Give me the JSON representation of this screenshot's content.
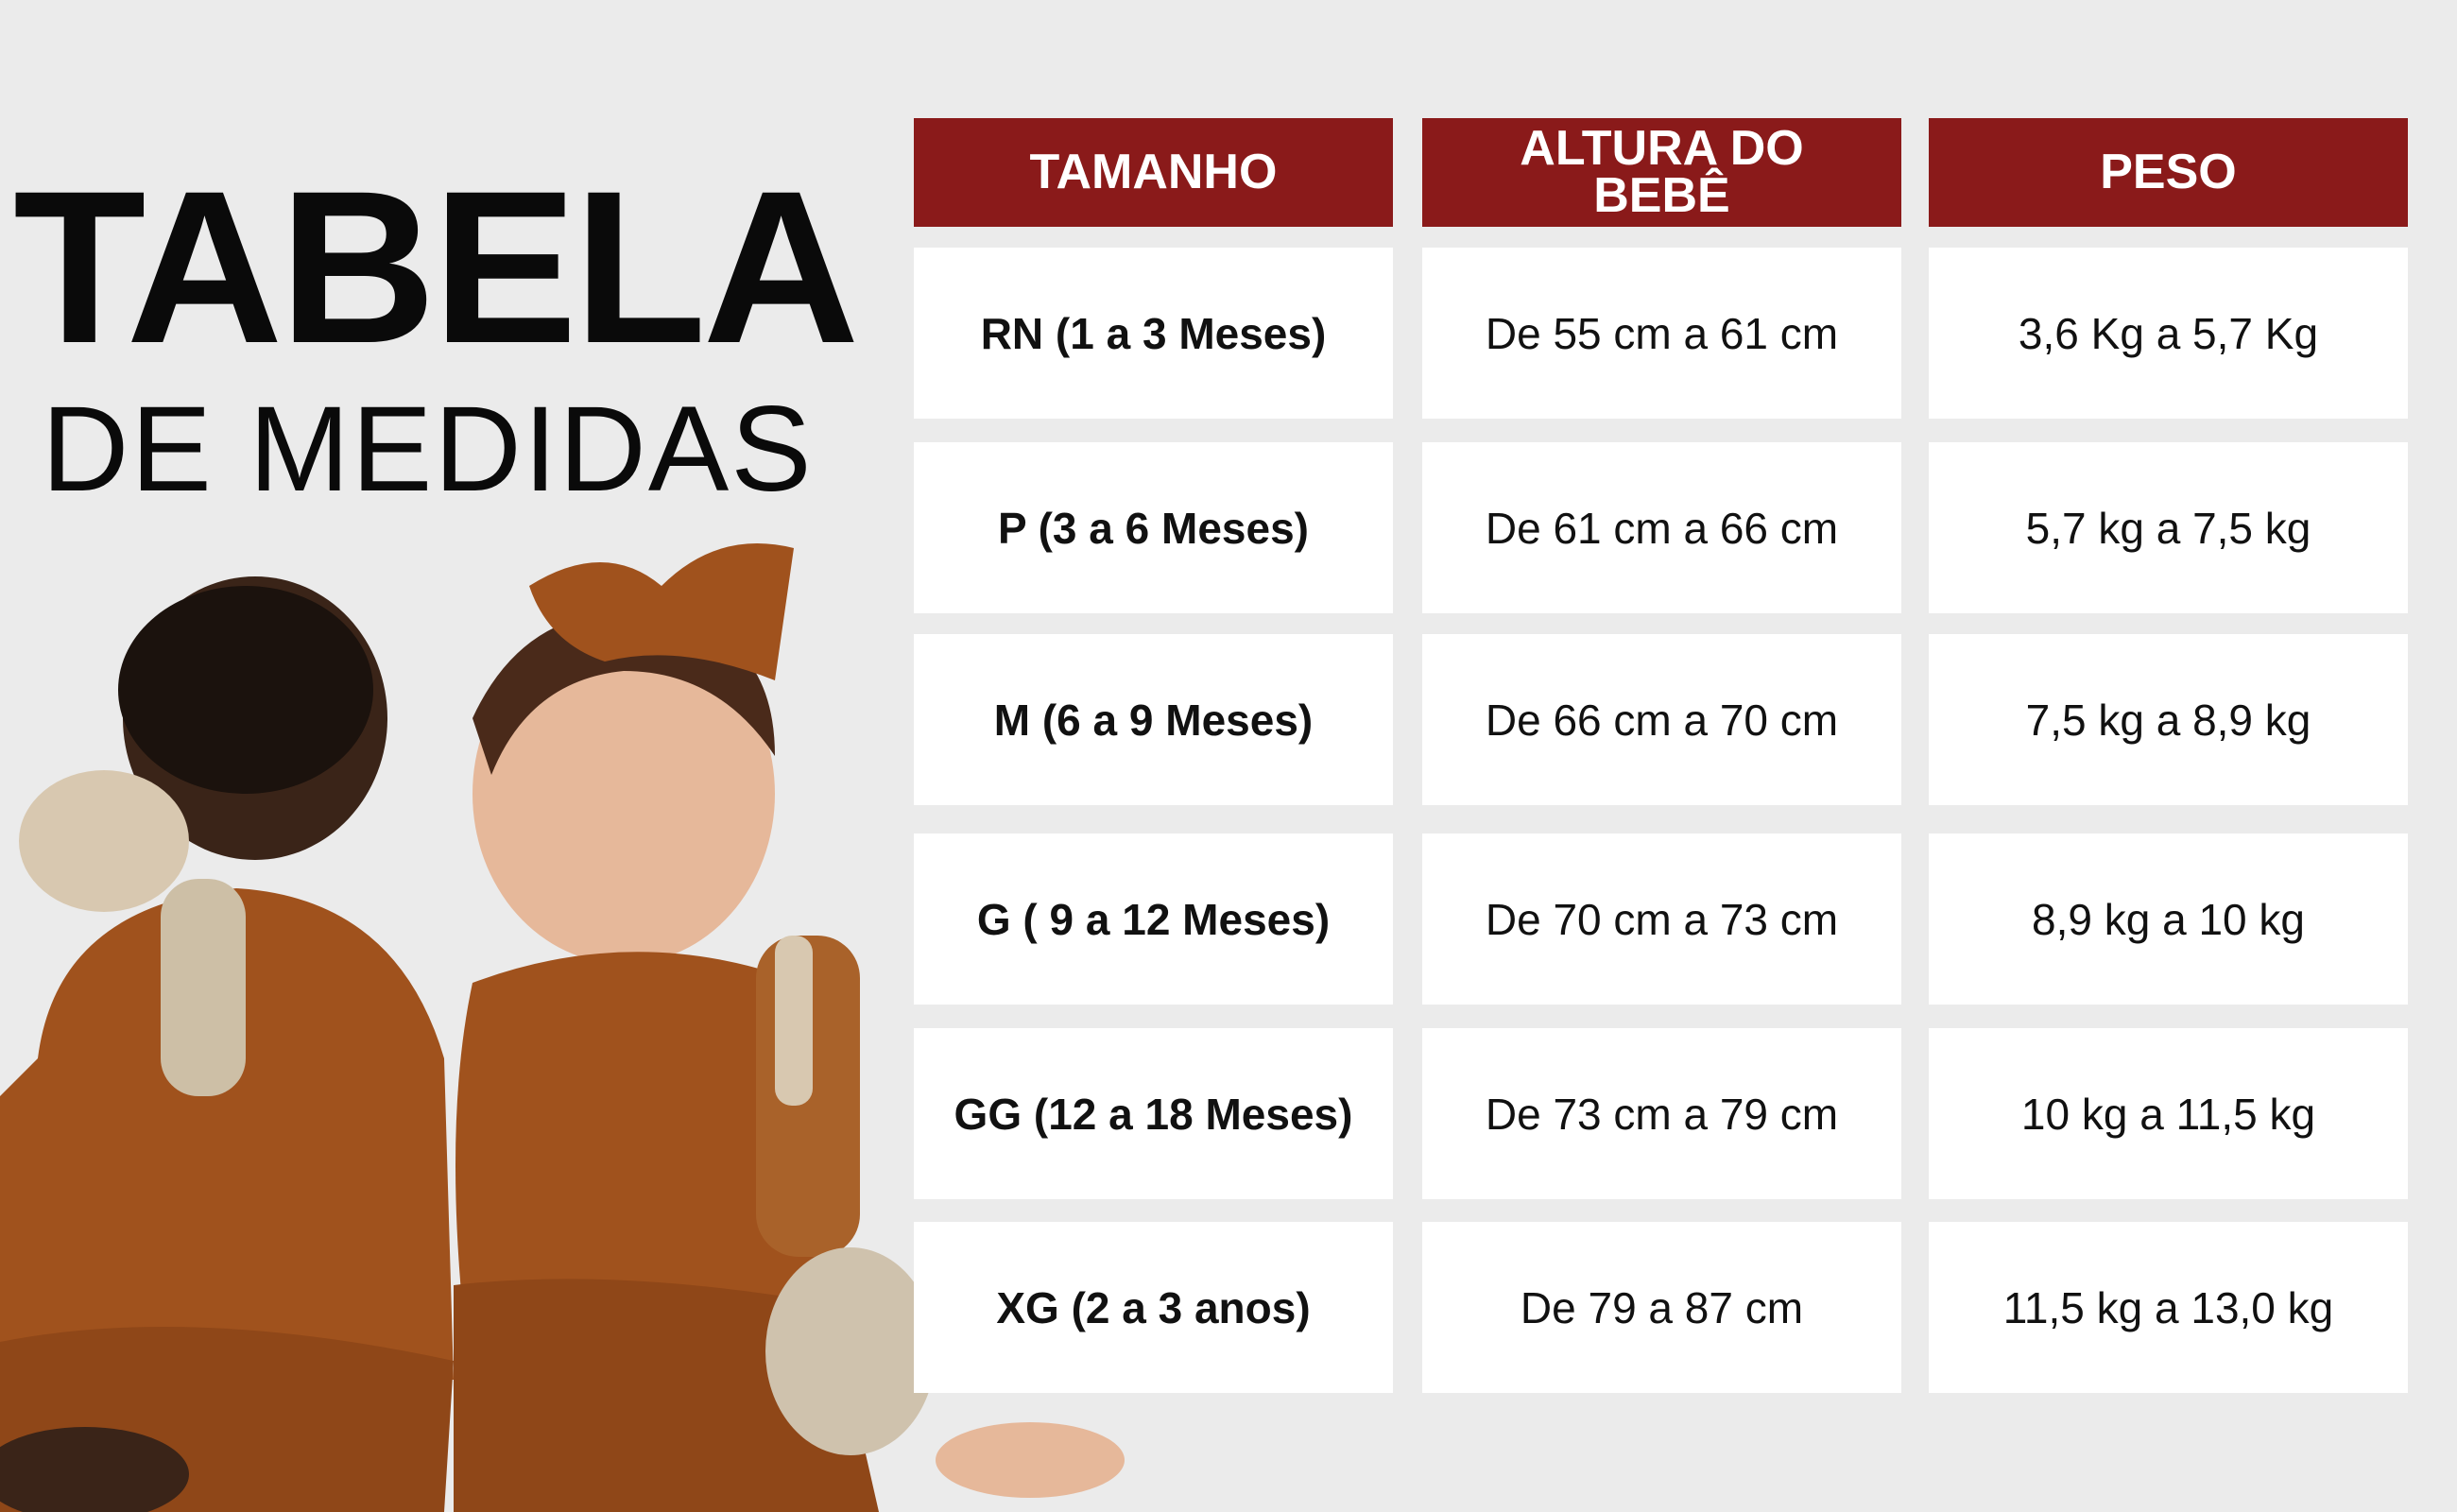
{
  "title": {
    "line1": "TABELA",
    "line2": "DE MEDIDAS"
  },
  "colors": {
    "header_bg": "#8a1a1a",
    "page_bg": "#ebebeb",
    "cell_bg": "#ffffff",
    "outfit": "#a0521d"
  },
  "table": {
    "headers": [
      "TAMANHO",
      "ALTURA DO BEBÊ",
      "PESO"
    ],
    "rows": [
      [
        "RN (1 a 3 Meses)",
        "De 55 cm a 61 cm",
        "3,6 Kg a 5,7 Kg"
      ],
      [
        "P (3 a 6 Meses)",
        "De 61 cm a 66 cm",
        "5,7 kg a 7,5 kg"
      ],
      [
        "M (6 a 9 Meses)",
        "De 66 cm a 70 cm",
        "7,5 kg a 8,9 kg"
      ],
      [
        "G ( 9 a 12 Meses)",
        "De 70 cm a 73 cm",
        "8,9 kg a 10 kg"
      ],
      [
        "GG (12 a 18 Meses)",
        "De 73 cm a 79 cm",
        "10 kg a 11,5 kg"
      ],
      [
        "XG (2 a 3 anos)",
        "De 79 a 87 cm",
        "11,5 kg a 13,0 kg"
      ]
    ]
  }
}
